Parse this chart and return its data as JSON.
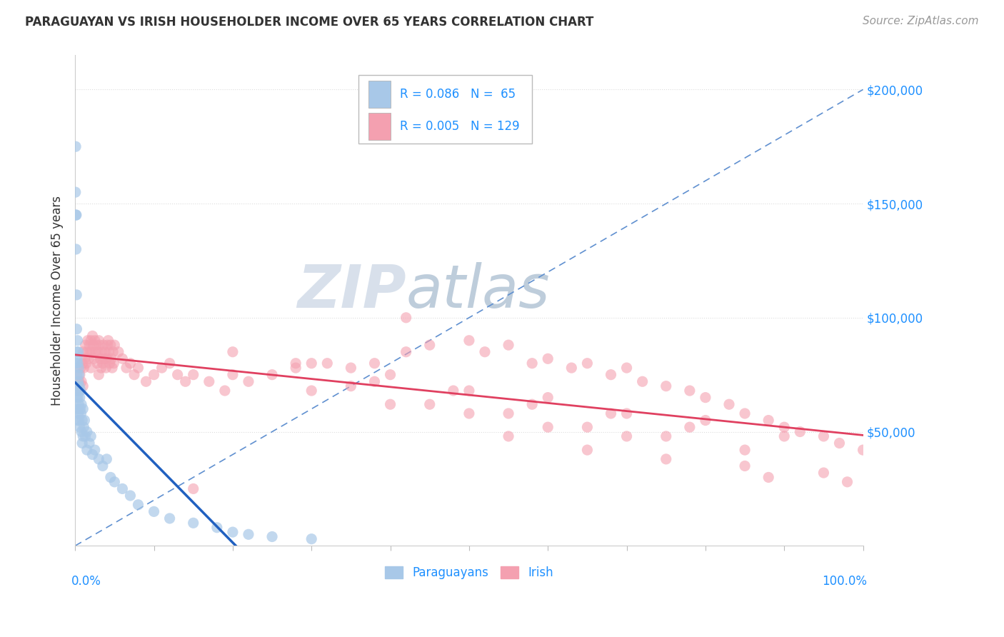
{
  "title": "PARAGUAYAN VS IRISH HOUSEHOLDER INCOME OVER 65 YEARS CORRELATION CHART",
  "source_text": "Source: ZipAtlas.com",
  "ylabel": "Householder Income Over 65 years",
  "ytick_values": [
    50000,
    100000,
    150000,
    200000
  ],
  "ymax": 215000,
  "ymin": 0,
  "xmin": 0.0,
  "xmax": 100.0,
  "paraguayan_color": "#A8C8E8",
  "irish_color": "#F4A0B0",
  "paraguayan_line_color": "#2060C0",
  "irish_line_color": "#E04060",
  "diag_line_color": "#6090D0",
  "paraguayan_R": "0.086",
  "paraguayan_N": "65",
  "irish_R": "0.005",
  "irish_N": "129",
  "legend_text_color": "#1E90FF",
  "watermark_color": "#C8D4E8",
  "paraguayan_x": [
    0.05,
    0.08,
    0.1,
    0.1,
    0.12,
    0.15,
    0.15,
    0.18,
    0.2,
    0.2,
    0.22,
    0.25,
    0.25,
    0.28,
    0.3,
    0.3,
    0.3,
    0.35,
    0.35,
    0.38,
    0.4,
    0.4,
    0.4,
    0.45,
    0.45,
    0.5,
    0.5,
    0.5,
    0.55,
    0.6,
    0.6,
    0.65,
    0.7,
    0.75,
    0.8,
    0.8,
    0.9,
    0.9,
    1.0,
    1.0,
    1.1,
    1.2,
    1.3,
    1.5,
    1.5,
    1.8,
    2.0,
    2.2,
    2.5,
    3.0,
    3.5,
    4.0,
    4.5,
    5.0,
    6.0,
    7.0,
    8.0,
    10.0,
    12.0,
    15.0,
    18.0,
    20.0,
    22.0,
    25.0,
    30.0
  ],
  "paraguayan_y": [
    155000,
    175000,
    145000,
    70000,
    130000,
    145000,
    80000,
    110000,
    95000,
    65000,
    85000,
    75000,
    60000,
    82000,
    90000,
    70000,
    55000,
    80000,
    65000,
    72000,
    85000,
    68000,
    58000,
    78000,
    62000,
    75000,
    68000,
    55000,
    70000,
    65000,
    52000,
    60000,
    68000,
    58000,
    62000,
    50000,
    55000,
    45000,
    60000,
    48000,
    52000,
    55000,
    48000,
    50000,
    42000,
    45000,
    48000,
    40000,
    42000,
    38000,
    35000,
    38000,
    30000,
    28000,
    25000,
    22000,
    18000,
    15000,
    12000,
    10000,
    8000,
    6000,
    5000,
    4000,
    3000
  ],
  "irish_x": [
    0.3,
    0.5,
    0.6,
    0.7,
    0.8,
    0.9,
    1.0,
    1.0,
    1.1,
    1.2,
    1.3,
    1.4,
    1.5,
    1.6,
    1.7,
    1.8,
    1.9,
    2.0,
    2.0,
    2.1,
    2.2,
    2.3,
    2.4,
    2.5,
    2.6,
    2.7,
    2.8,
    2.9,
    3.0,
    3.0,
    3.1,
    3.2,
    3.3,
    3.4,
    3.5,
    3.6,
    3.7,
    3.8,
    3.9,
    4.0,
    4.1,
    4.2,
    4.3,
    4.4,
    4.5,
    4.6,
    4.7,
    4.8,
    4.9,
    5.0,
    5.5,
    6.0,
    6.5,
    7.0,
    7.5,
    8.0,
    9.0,
    10.0,
    11.0,
    12.0,
    13.0,
    14.0,
    15.0,
    17.0,
    19.0,
    22.0,
    25.0,
    28.0,
    32.0,
    35.0,
    38.0,
    42.0,
    45.0,
    50.0,
    52.0,
    55.0,
    58.0,
    60.0,
    63.0,
    65.0,
    68.0,
    70.0,
    72.0,
    75.0,
    78.0,
    80.0,
    83.0,
    85.0,
    88.0,
    90.0,
    92.0,
    95.0,
    97.0,
    100.0,
    42.0,
    55.0,
    65.0,
    75.0,
    85.0,
    95.0,
    30.0,
    40.0,
    50.0,
    60.0,
    70.0,
    80.0,
    90.0,
    20.0,
    35.0,
    45.0,
    55.0,
    65.0,
    75.0,
    85.0,
    20.0,
    30.0,
    40.0,
    50.0,
    60.0,
    70.0,
    28.0,
    38.0,
    48.0,
    58.0,
    68.0,
    78.0,
    88.0,
    98.0,
    15.0
  ],
  "irish_y": [
    68000,
    72000,
    75000,
    78000,
    72000,
    80000,
    85000,
    70000,
    78000,
    82000,
    88000,
    80000,
    85000,
    90000,
    82000,
    88000,
    85000,
    90000,
    78000,
    85000,
    92000,
    88000,
    82000,
    90000,
    85000,
    88000,
    80000,
    85000,
    90000,
    75000,
    88000,
    82000,
    78000,
    85000,
    80000,
    88000,
    82000,
    85000,
    78000,
    82000,
    88000,
    90000,
    85000,
    80000,
    88000,
    82000,
    78000,
    85000,
    80000,
    88000,
    85000,
    82000,
    78000,
    80000,
    75000,
    78000,
    72000,
    75000,
    78000,
    80000,
    75000,
    72000,
    75000,
    72000,
    68000,
    72000,
    75000,
    78000,
    80000,
    78000,
    80000,
    85000,
    88000,
    90000,
    85000,
    88000,
    80000,
    82000,
    78000,
    80000,
    75000,
    78000,
    72000,
    70000,
    68000,
    65000,
    62000,
    58000,
    55000,
    52000,
    50000,
    48000,
    45000,
    42000,
    100000,
    48000,
    42000,
    38000,
    35000,
    32000,
    80000,
    75000,
    68000,
    65000,
    58000,
    55000,
    48000,
    85000,
    70000,
    62000,
    58000,
    52000,
    48000,
    42000,
    75000,
    68000,
    62000,
    58000,
    52000,
    48000,
    80000,
    72000,
    68000,
    62000,
    58000,
    52000,
    30000,
    28000,
    25000
  ]
}
